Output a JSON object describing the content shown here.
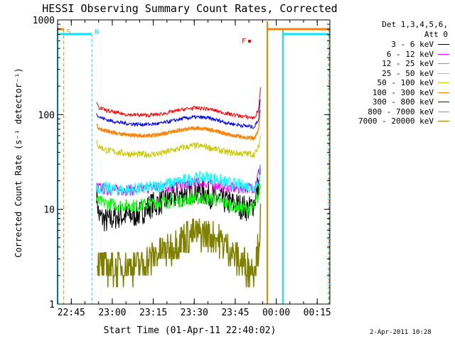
{
  "chart_data": {
    "type": "line",
    "title": "HESSI Observing Summary Count Rates, Corrected",
    "xlabel": "Start Time (01-Apr-11 22:40:02)",
    "ylabel": "Corrected Count Rate (s⁻¹ detector⁻¹)",
    "y_scale": "log",
    "ylim": [
      1,
      1000
    ],
    "xlim_minutes": [
      -0.05,
      99.6
    ],
    "x_start": "01-Apr-11 22:40:02",
    "x_ticks": [
      {
        "label": "22:45",
        "min": 4.97
      },
      {
        "label": "23:00",
        "min": 19.97
      },
      {
        "label": "23:15",
        "min": 34.97
      },
      {
        "label": "23:30",
        "min": 49.97
      },
      {
        "label": "23:45",
        "min": 64.97
      },
      {
        "label": "00:00",
        "min": 79.97
      },
      {
        "label": "00:15",
        "min": 94.97
      }
    ],
    "y_ticks": [
      {
        "label": "1",
        "value": 1
      },
      {
        "label": "10",
        "value": 10
      },
      {
        "label": "100",
        "value": 100
      },
      {
        "label": "1000",
        "value": 1000
      }
    ],
    "legend_header": [
      "Det 1,3,4,5,6,",
      "Att 0"
    ],
    "legend_position": "right",
    "series": [
      {
        "name": "3 - 6 keV",
        "color": "#000000",
        "start_min": 14.2,
        "end_min": 74.2,
        "x": [
          14.2,
          15.0,
          18.0,
          22.0,
          26.0,
          30.0,
          34.0,
          38.0,
          42.0,
          46.0,
          50.0,
          54.0,
          58.0,
          62.0,
          66.0,
          70.0,
          72.0,
          73.5,
          74.2
        ],
        "values": [
          16,
          8.5,
          7.5,
          8.5,
          8.5,
          9.0,
          11.0,
          12.0,
          13.5,
          14.5,
          16.0,
          15.0,
          13.0,
          12.0,
          11.0,
          10.0,
          12.0,
          18.0,
          22.0
        ]
      },
      {
        "name": "6 - 12 keV",
        "color": "#ff00ff",
        "start_min": 14.2,
        "end_min": 74.2,
        "x": [
          14.2,
          15.0,
          18.0,
          22.0,
          26.0,
          30.0,
          34.0,
          38.0,
          42.0,
          46.0,
          50.0,
          54.0,
          58.0,
          62.0,
          66.0,
          70.0,
          72.0,
          73.5,
          74.2
        ],
        "values": [
          17,
          17,
          16,
          16,
          16,
          16,
          17,
          17,
          17.5,
          18.0,
          19.0,
          19.0,
          18.0,
          17.0,
          16.5,
          17.0,
          17.0,
          24.0,
          30.0
        ]
      },
      {
        "name": "12 - 25 keV",
        "color": "#00ff00",
        "start_min": 14.2,
        "end_min": 74.2,
        "x": [
          14.2,
          15.0,
          18.0,
          22.0,
          26.0,
          30.0,
          34.0,
          38.0,
          42.0,
          46.0,
          50.0,
          54.0,
          58.0,
          62.0,
          66.0,
          70.0,
          72.0,
          73.5,
          74.2
        ],
        "values": [
          13,
          12,
          11.5,
          11,
          11,
          11,
          11.5,
          12.0,
          12.0,
          12.5,
          13.0,
          13.0,
          12.5,
          11.5,
          10.5,
          10.0,
          10.5,
          14.0,
          18.0
        ]
      },
      {
        "name": "25 - 50 keV",
        "color": "#00ffff",
        "start_min": 14.2,
        "end_min": 74.2,
        "x": [
          14.2,
          15.0,
          18.0,
          22.0,
          26.0,
          30.0,
          34.0,
          38.0,
          42.0,
          46.0,
          50.0,
          54.0,
          58.0,
          62.0,
          66.0,
          70.0,
          72.0,
          73.5,
          74.2
        ],
        "values": [
          18,
          17,
          16.5,
          16,
          16,
          16.5,
          17,
          18.0,
          19.0,
          20.0,
          21.0,
          22.0,
          21.0,
          19.0,
          18.0,
          17.5,
          17.0,
          20.0,
          26.0
        ]
      },
      {
        "name": "50 - 100 keV",
        "color": "#c8c800",
        "start_min": 14.2,
        "end_min": 74.2,
        "x": [
          14.2,
          15.0,
          18.0,
          22.0,
          26.0,
          30.0,
          34.0,
          38.0,
          42.0,
          46.0,
          50.0,
          54.0,
          58.0,
          62.0,
          66.0,
          70.0,
          72.0,
          73.5,
          74.2
        ],
        "values": [
          52,
          46,
          42,
          40,
          38.5,
          38,
          38,
          39.0,
          42.0,
          45.0,
          47.0,
          46.0,
          43.0,
          40.0,
          39.0,
          38.5,
          38.0,
          45.0,
          60.0
        ]
      },
      {
        "name": "100 - 300 keV",
        "color": "#ff8000",
        "start_min": 14.2,
        "end_min": 74.2,
        "x": [
          14.2,
          15.0,
          18.0,
          22.0,
          26.0,
          30.0,
          34.0,
          38.0,
          42.0,
          46.0,
          50.0,
          54.0,
          58.0,
          62.0,
          66.0,
          70.0,
          72.0,
          73.5,
          74.2
        ],
        "values": [
          80,
          72,
          67,
          63,
          61,
          60,
          60,
          62.0,
          66.0,
          70.0,
          72.0,
          71.0,
          67.0,
          62.0,
          59.0,
          57.0,
          56.0,
          70.0,
          110.0
        ]
      },
      {
        "name": "300 - 800 keV",
        "color": "#0000ff",
        "start_min": 14.2,
        "end_min": 74.2,
        "x": [
          14.2,
          15.0,
          18.0,
          22.0,
          26.0,
          30.0,
          34.0,
          38.0,
          42.0,
          46.0,
          50.0,
          54.0,
          58.0,
          62.0,
          66.0,
          70.0,
          72.0,
          73.5,
          74.2
        ],
        "values": [
          105,
          95,
          88,
          83,
          80,
          79,
          79,
          81.0,
          86.0,
          91.0,
          94.0,
          93.0,
          88.0,
          82.0,
          78.0,
          75.0,
          74.0,
          90.0,
          150.0
        ]
      },
      {
        "name": "800 - 7000 keV",
        "color": "#ff8000",
        "start_min": 14.2,
        "end_min": 74.2,
        "x": [
          14.2,
          15.0,
          18.0,
          22.0,
          26.0,
          30.0,
          34.0,
          38.0,
          42.0,
          46.0,
          50.0,
          54.0,
          58.0,
          62.0,
          66.0,
          70.0,
          72.0,
          73.5,
          74.2
        ],
        "values": [
          80,
          72,
          67,
          63,
          61,
          60,
          60,
          62.0,
          66.0,
          70.0,
          72.0,
          71.0,
          67.0,
          62.0,
          59.0,
          57.0,
          56.0,
          70.0,
          110.0
        ]
      },
      {
        "name": "7000 - 20000 keV",
        "color": "#808000",
        "start_min": 14.2,
        "end_min": 74.2,
        "x": [
          14.2,
          15.0,
          18.0,
          22.0,
          26.0,
          30.0,
          34.0,
          38.0,
          42.0,
          46.0,
          50.0,
          54.0,
          58.0,
          62.0,
          66.0,
          70.0,
          72.0,
          73.5,
          74.2
        ],
        "values": [
          3.0,
          2.5,
          2.5,
          2.5,
          2.5,
          2.5,
          3.0,
          3.5,
          4.0,
          5.0,
          5.5,
          5.5,
          5.0,
          4.0,
          3.0,
          2.5,
          2.5,
          4.0,
          8.0
        ]
      }
    ],
    "flags": [
      {
        "label": "S",
        "color": "#ff8000",
        "min": 2.2
      },
      {
        "label": "N",
        "color": "#00e8ff",
        "min": 12.5
      },
      {
        "label": "F",
        "color": "#ff0000",
        "min": 62.3
      }
    ],
    "extra_colors": {
      "night_band": "#00e8ff",
      "saa_band": "#ff8000",
      "red_series": "#ff0000"
    }
  },
  "footer": {
    "stamp": "2-Apr-2011 10:28"
  }
}
